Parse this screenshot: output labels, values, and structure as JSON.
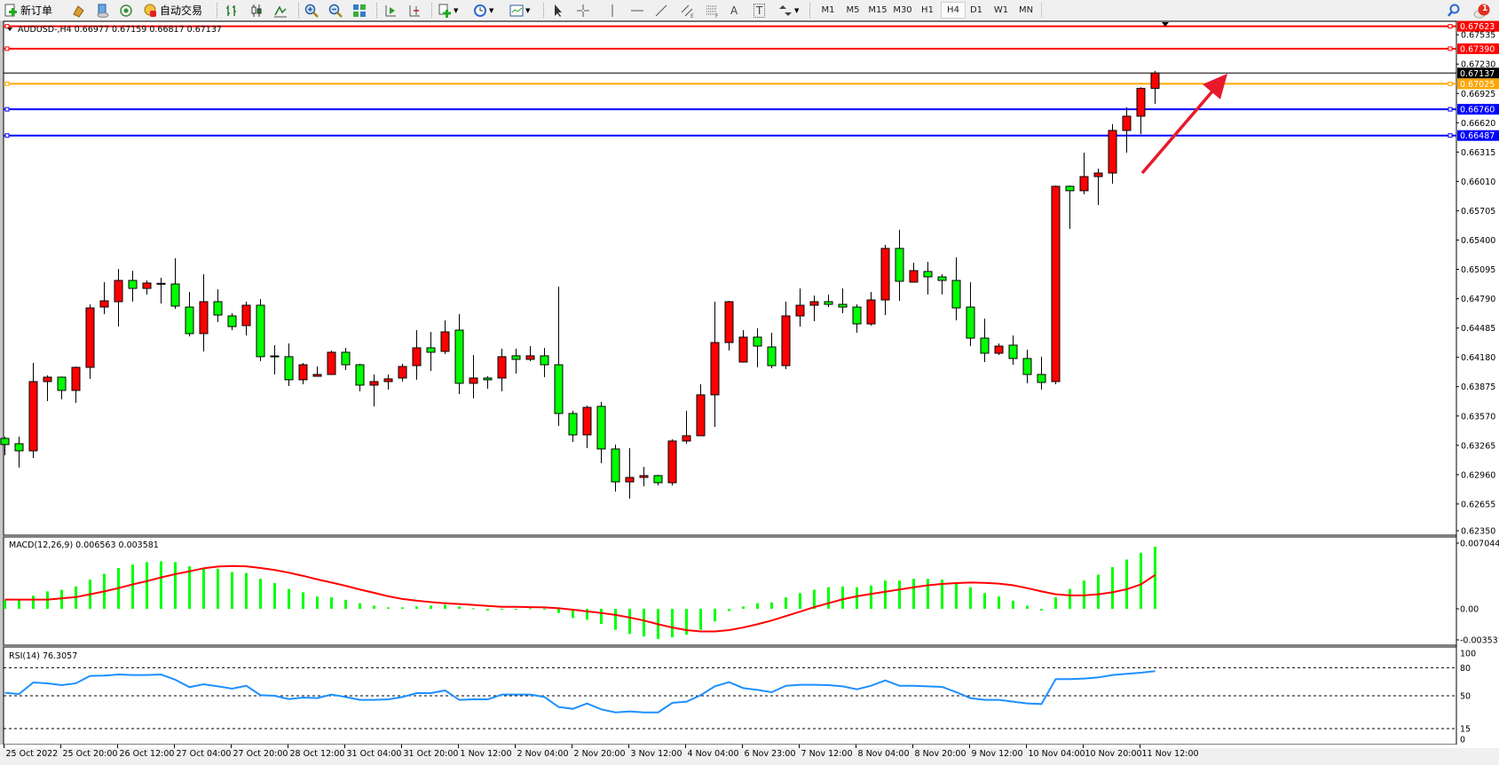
{
  "toolbar": {
    "new_order_label": "新订单",
    "auto_trading_label": "自动交易",
    "timeframes": [
      "M1",
      "M5",
      "M15",
      "M30",
      "H1",
      "H4",
      "D1",
      "W1",
      "MN"
    ],
    "active_timeframe": "H4",
    "notification_count": "1",
    "drawing_text_tool": "A",
    "text_label_tool": "T"
  },
  "chart": {
    "symbol_info": "AUDUSD-,H4  0.66977 0.67159 0.66817 0.67137",
    "price_axis_labels": [
      "0.67535",
      "0.67230",
      "0.66925",
      "0.66620",
      "0.66315",
      "0.66010",
      "0.65705",
      "0.65400",
      "0.65095",
      "0.64790",
      "0.64485",
      "0.64180",
      "0.63875",
      "0.63570",
      "0.63265",
      "0.62960",
      "0.62655",
      "0.62350"
    ],
    "time_axis_labels": [
      "25 Oct 2022",
      "25 Oct 20:00",
      "26 Oct 12:00",
      "27 Oct 04:00",
      "27 Oct 20:00",
      "28 Oct 12:00",
      "31 Oct 04:00",
      "31 Oct 20:00",
      "1 Nov 12:00",
      "2 Nov 04:00",
      "2 Nov 20:00",
      "3 Nov 12:00",
      "4 Nov 04:00",
      "6 Nov 23:00",
      "7 Nov 12:00",
      "8 Nov 04:00",
      "8 Nov 20:00",
      "9 Nov 12:00",
      "10 Nov 04:00",
      "10 Nov 20:00",
      "11 Nov 12:00"
    ],
    "horizontal_lines": [
      {
        "label": "0.67623",
        "color": "#ff0000"
      },
      {
        "label": "0.67390",
        "color": "#ff0000"
      },
      {
        "label": "0.67137",
        "color": "#000000"
      },
      {
        "label": "0.67025",
        "color": "#ffa500"
      },
      {
        "label": "0.66760",
        "color": "#0000ff"
      },
      {
        "label": "0.66487",
        "color": "#0000ff"
      }
    ],
    "bull_color": "#ff0000",
    "bear_color": "#00ff00",
    "arrow_color": "#e8192c"
  },
  "macd": {
    "label": "MACD(12,26,9) 0.006563 0.003581",
    "axis_labels": [
      "0.007044",
      "0.00",
      "-0.003531"
    ],
    "histogram_color": "#00ff00",
    "signal_color": "#ff0000"
  },
  "rsi": {
    "label": "RSI(14) 76.3057",
    "axis_labels": [
      "100",
      "80",
      "50",
      "15",
      "0"
    ],
    "levels": [
      80,
      50,
      15
    ],
    "line_color": "#1e90ff"
  },
  "chart_data": {
    "type": "candlestick",
    "symbol": "AUDUSD-",
    "timeframe": "H4",
    "ylim": [
      0.622,
      0.6775
    ],
    "candles": [
      [
        0.63337,
        0.63356,
        0.63162,
        0.63273
      ],
      [
        0.63282,
        0.63356,
        0.63033,
        0.63208
      ],
      [
        0.63208,
        0.64122,
        0.63134,
        0.63928
      ],
      [
        0.63928,
        0.63993,
        0.63725,
        0.63974
      ],
      [
        0.63974,
        0.6398,
        0.63743,
        0.63836
      ],
      [
        0.63836,
        0.64085,
        0.63707,
        0.64076
      ],
      [
        0.64076,
        0.64731,
        0.63956,
        0.64694
      ],
      [
        0.64703,
        0.64962,
        0.6463,
        0.64768
      ],
      [
        0.64759,
        0.651,
        0.645,
        0.6498
      ],
      [
        0.6498,
        0.65082,
        0.64759,
        0.64897
      ],
      [
        0.64897,
        0.6498,
        0.64833,
        0.64953
      ],
      [
        0.64943,
        0.65008,
        0.6474,
        0.64945
      ],
      [
        0.64943,
        0.65211,
        0.64685,
        0.64713
      ],
      [
        0.64703,
        0.6486,
        0.64399,
        0.64427
      ],
      [
        0.64427,
        0.65045,
        0.64242,
        0.64759
      ],
      [
        0.64759,
        0.64888,
        0.64547,
        0.6462
      ],
      [
        0.64611,
        0.64639,
        0.64463,
        0.645
      ],
      [
        0.6451,
        0.64759,
        0.64408,
        0.64722
      ],
      [
        0.64722,
        0.64786,
        0.6414,
        0.64187
      ],
      [
        0.64187,
        0.64307,
        0.64002,
        0.6419
      ],
      [
        0.64187,
        0.64325,
        0.63882,
        0.63947
      ],
      [
        0.63947,
        0.64122,
        0.639,
        0.64103
      ],
      [
        0.63983,
        0.64085,
        0.6398,
        0.64002
      ],
      [
        0.64002,
        0.64251,
        0.64,
        0.64233
      ],
      [
        0.64233,
        0.64279,
        0.64048,
        0.64103
      ],
      [
        0.64103,
        0.64113,
        0.63827,
        0.63891
      ],
      [
        0.63891,
        0.64002,
        0.6367,
        0.63928
      ],
      [
        0.63928,
        0.64002,
        0.63845,
        0.63956
      ],
      [
        0.63965,
        0.64113,
        0.63928,
        0.64085
      ],
      [
        0.64094,
        0.64463,
        0.63947,
        0.64279
      ],
      [
        0.64279,
        0.64445,
        0.64039,
        0.64233
      ],
      [
        0.64242,
        0.64565,
        0.64214,
        0.64445
      ],
      [
        0.64463,
        0.6463,
        0.63799,
        0.6391
      ],
      [
        0.6391,
        0.64205,
        0.63753,
        0.63965
      ],
      [
        0.63965,
        0.63983,
        0.63854,
        0.63947
      ],
      [
        0.63965,
        0.6427,
        0.63827,
        0.64187
      ],
      [
        0.64196,
        0.6427,
        0.64011,
        0.64159
      ],
      [
        0.64159,
        0.64297,
        0.6414,
        0.64196
      ],
      [
        0.64196,
        0.64279,
        0.63974,
        0.64103
      ],
      [
        0.64103,
        0.64916,
        0.63467,
        0.63596
      ],
      [
        0.63596,
        0.63624,
        0.633,
        0.63374
      ],
      [
        0.63374,
        0.63679,
        0.63236,
        0.6366
      ],
      [
        0.6367,
        0.63716,
        0.63079,
        0.63227
      ],
      [
        0.63227,
        0.63273,
        0.62784,
        0.62885
      ],
      [
        0.62885,
        0.63236,
        0.6271,
        0.62931
      ],
      [
        0.62931,
        0.63042,
        0.62839,
        0.6295
      ],
      [
        0.6295,
        0.62959,
        0.62848,
        0.62876
      ],
      [
        0.62876,
        0.63328,
        0.62848,
        0.6331
      ],
      [
        0.6331,
        0.63624,
        0.63282,
        0.63365
      ],
      [
        0.63365,
        0.639,
        0.6336,
        0.6379
      ],
      [
        0.6379,
        0.64759,
        0.63457,
        0.64334
      ],
      [
        0.64334,
        0.64768,
        0.64251,
        0.64759
      ],
      [
        0.64131,
        0.64463,
        0.64125,
        0.6439
      ],
      [
        0.6439,
        0.64482,
        0.64076,
        0.64297
      ],
      [
        0.64288,
        0.64436,
        0.64067,
        0.64094
      ],
      [
        0.64094,
        0.64759,
        0.64057,
        0.64611
      ],
      [
        0.64611,
        0.64897,
        0.645,
        0.64722
      ],
      [
        0.64722,
        0.64823,
        0.64556,
        0.64759
      ],
      [
        0.64759,
        0.64833,
        0.64703,
        0.64731
      ],
      [
        0.64731,
        0.64897,
        0.64639,
        0.64703
      ],
      [
        0.64703,
        0.64731,
        0.64436,
        0.64528
      ],
      [
        0.64528,
        0.6486,
        0.6451,
        0.64777
      ],
      [
        0.64777,
        0.6535,
        0.6462,
        0.65313
      ],
      [
        0.65313,
        0.65506,
        0.64768,
        0.64971
      ],
      [
        0.64962,
        0.65165,
        0.6496,
        0.65082
      ],
      [
        0.65073,
        0.65174,
        0.64833,
        0.65017
      ],
      [
        0.65017,
        0.65045,
        0.64833,
        0.6498
      ],
      [
        0.6498,
        0.6522,
        0.64565,
        0.64694
      ],
      [
        0.64703,
        0.64962,
        0.64297,
        0.6438
      ],
      [
        0.6438,
        0.64583,
        0.64131,
        0.64223
      ],
      [
        0.64223,
        0.64325,
        0.64205,
        0.64297
      ],
      [
        0.64307,
        0.64408,
        0.64103,
        0.64168
      ],
      [
        0.64168,
        0.6426,
        0.6391,
        0.64002
      ],
      [
        0.64002,
        0.64187,
        0.63845,
        0.63919
      ],
      [
        0.63928,
        0.65968,
        0.639,
        0.65959
      ],
      [
        0.65959,
        0.65968,
        0.65516,
        0.65913
      ],
      [
        0.65913,
        0.66309,
        0.65876,
        0.6606
      ],
      [
        0.6606,
        0.66143,
        0.65765,
        0.66097
      ],
      [
        0.66097,
        0.66605,
        0.65986,
        0.6654
      ],
      [
        0.6654,
        0.6678,
        0.66309,
        0.66688
      ],
      [
        0.66688,
        0.6699,
        0.66503,
        0.66977
      ],
      [
        0.66977,
        0.67159,
        0.66817,
        0.67137
      ]
    ],
    "horizontal_levels": [
      0.67623,
      0.6739,
      0.67137,
      0.67025,
      0.6676,
      0.66487
    ],
    "macd": {
      "ylim": [
        -0.003531,
        0.007044
      ],
      "histogram": [
        0.00089,
        0.00089,
        0.00139,
        0.00184,
        0.00201,
        0.00237,
        0.00308,
        0.0037,
        0.00432,
        0.00468,
        0.00494,
        0.00503,
        0.00494,
        0.0045,
        0.00432,
        0.00423,
        0.00388,
        0.00379,
        0.00317,
        0.00272,
        0.0021,
        0.00175,
        0.0013,
        0.00121,
        0.00095,
        0.00059,
        0.00033,
        0.00015,
        0.00015,
        0.00024,
        0.00033,
        0.00041,
        0.00024,
        6e-05,
        -0.00018,
        -3e-05,
        -3e-05,
        6e-05,
        2e-05,
        -0.00044,
        -0.00098,
        -0.00115,
        -0.0016,
        -0.00222,
        -0.00266,
        -0.00293,
        -0.0032,
        -0.00302,
        -0.00275,
        -0.00222,
        -0.00133,
        -0.00024,
        0.00024,
        0.00059,
        0.00068,
        0.00121,
        0.00166,
        0.00201,
        0.00228,
        0.00237,
        0.00228,
        0.00246,
        0.00299,
        0.00299,
        0.00317,
        0.00317,
        0.00308,
        0.00272,
        0.00228,
        0.00166,
        0.0013,
        0.00086,
        0.00033,
        -0.00018,
        0.00121,
        0.0021,
        0.00299,
        0.00361,
        0.00441,
        0.00521,
        0.00592,
        0.006563
      ],
      "signal": [
        0.00098,
        0.00098,
        0.00098,
        0.00098,
        0.0011,
        0.00124,
        0.00154,
        0.00184,
        0.00219,
        0.00258,
        0.00293,
        0.00332,
        0.00367,
        0.00397,
        0.00429,
        0.00447,
        0.00453,
        0.0045,
        0.00432,
        0.00411,
        0.00382,
        0.00349,
        0.00311,
        0.00278,
        0.00243,
        0.00204,
        0.00169,
        0.00133,
        0.00104,
        0.00086,
        0.00071,
        0.00059,
        0.0005,
        0.00041,
        0.0003,
        0.00021,
        0.00021,
        0.00018,
        0.00015,
        6e-05,
        -9e-05,
        -0.00027,
        -0.00044,
        -0.00065,
        -0.00092,
        -0.00124,
        -0.00163,
        -0.00198,
        -0.00225,
        -0.0024,
        -0.0024,
        -0.00225,
        -0.00198,
        -0.00163,
        -0.00124,
        -0.00077,
        -0.0003,
        0.00018,
        0.00059,
        0.00101,
        0.00133,
        0.00157,
        0.00181,
        0.00204,
        0.00228,
        0.00249,
        0.00263,
        0.00272,
        0.00278,
        0.00275,
        0.00266,
        0.00249,
        0.00219,
        0.00184,
        0.00154,
        0.00142,
        0.00142,
        0.00154,
        0.00175,
        0.00207,
        0.00258,
        0.003581
      ]
    },
    "rsi": {
      "ylim": [
        0,
        100
      ],
      "values": [
        53.2,
        51.9,
        64.2,
        63.3,
        61.4,
        63.3,
        71.2,
        71.5,
        72.7,
        72.1,
        72.1,
        72.7,
        67.1,
        59.2,
        62.3,
        60.1,
        57.6,
        60.7,
        50.6,
        50.0,
        46.5,
        48.1,
        47.5,
        51.3,
        48.7,
        45.6,
        45.6,
        46.2,
        48.7,
        52.8,
        52.8,
        55.7,
        45.6,
        46.2,
        46.2,
        51.3,
        51.3,
        51.3,
        48.7,
        38.0,
        36.1,
        41.8,
        35.5,
        32.3,
        33.3,
        32.3,
        32.3,
        42.4,
        43.7,
        50.6,
        60.1,
        64.5,
        58.2,
        56.3,
        53.8,
        60.7,
        61.7,
        61.7,
        61.4,
        60.1,
        56.9,
        60.7,
        66.4,
        60.7,
        60.7,
        60.1,
        59.5,
        53.8,
        47.5,
        45.6,
        45.6,
        43.7,
        41.8,
        41.2,
        67.7,
        67.7,
        68.3,
        69.6,
        72.1,
        73.4,
        74.6,
        76.31
      ]
    }
  }
}
